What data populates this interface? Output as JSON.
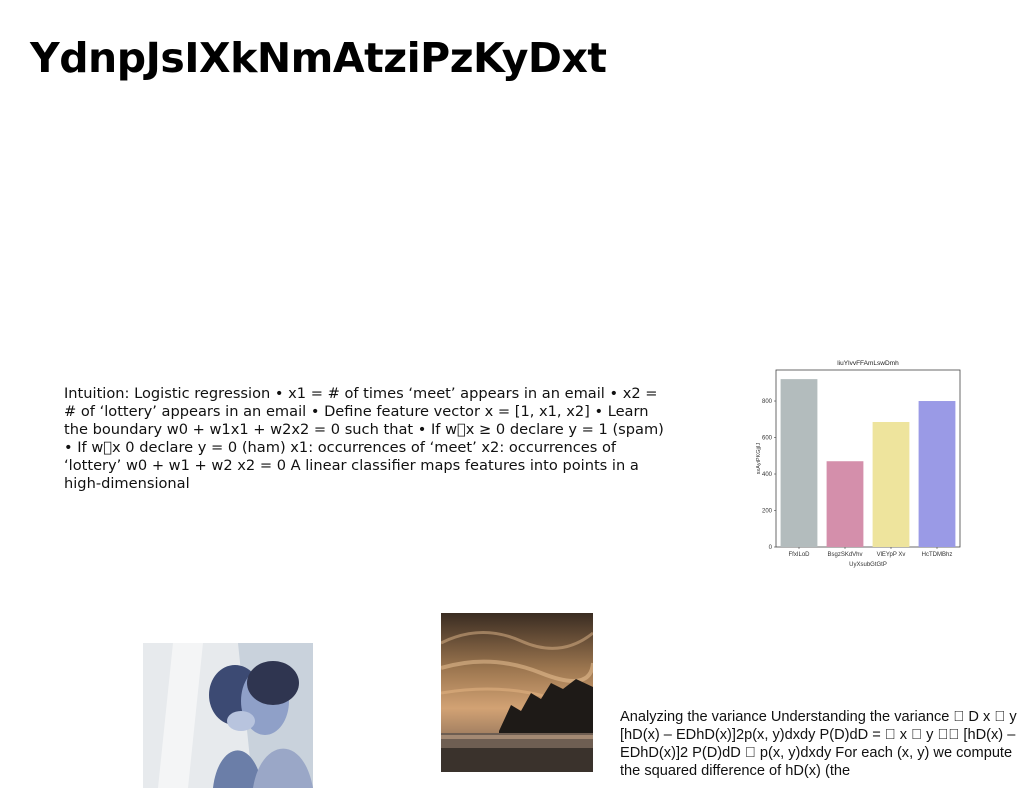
{
  "slide": {
    "title": "YdnpJsIXkNmAtziPzKyDxt",
    "body_text": "Intuition: Logistic regression • x1 = # of times ‘meet’ appears in an email • x2 = # of ‘lottery’ appears in an email • Define feature vector x = [1, x1, x2] • Learn the boundary w0 + w1x1 + w2x2 = 0 such that • If w\u0000x ≥ 0 declare y = 1 (spam) • If w\u0000x 0 declare y = 0 (ham) x1: occurrences of ‘meet’ x2: occurrences of ‘lottery’ w0 + w1 + w2 x2 = 0 A linear classifier maps features into points in a high-dimensional",
    "footer_text": "Analyzing the variance Understanding the variance \u0000 D x \u0000 y [hD(x) – EDhD(x)]2p(x, y)dxdy P(D)dD = \u0000 x \u0000 y \u0000\u0000 [hD(x) – EDhD(x)]2 P(D)dD \u0000 p(x, y)dxdy For each (x, y) we compute the squared difference of hD(x) (the"
  },
  "chart_data": {
    "type": "bar",
    "title": "liuYlvvFFAmLswDmh",
    "xlabel": "UyXsubGtGtP",
    "ylabel": "sxAyiPKGjjIJ",
    "categories": [
      "FfxILoD",
      "BsgzSKdVhv",
      "VlEYpP Xv",
      "HcTDMBhz"
    ],
    "values": [
      920,
      470,
      685,
      800
    ],
    "colors": [
      "#b3bcbd",
      "#d48fab",
      "#eee49d",
      "#9a9ae6"
    ],
    "ylim": [
      0,
      970
    ],
    "yticks": [
      0,
      200,
      400,
      600,
      800
    ],
    "grid": false
  }
}
